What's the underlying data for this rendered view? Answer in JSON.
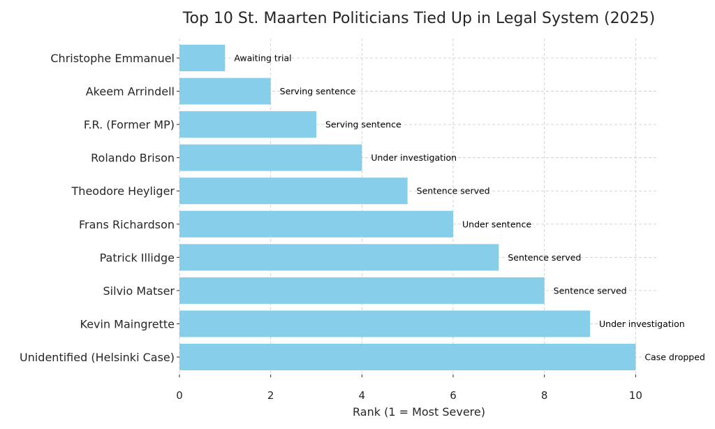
{
  "chart_data": {
    "type": "bar",
    "orientation": "horizontal",
    "title": "Top 10 St. Maarten Politicians Tied Up in Legal System (2025)",
    "xlabel": "Rank (1 = Most Severe)",
    "ylabel": "",
    "xlim": [
      0,
      10.5
    ],
    "xticks": [
      0,
      2,
      4,
      6,
      8,
      10
    ],
    "grid": true,
    "bar_color": "#87ceeb",
    "categories": [
      "Christophe Emmanuel",
      "Akeem Arrindell",
      "F.R. (Former MP)",
      "Rolando Brison",
      "Theodore Heyliger",
      "Frans Richardson",
      "Patrick Illidge",
      "Silvio Matser",
      "Kevin Maingrette",
      "Unidentified (Helsinki Case)"
    ],
    "values": [
      1,
      2,
      3,
      4,
      5,
      6,
      7,
      8,
      9,
      10
    ],
    "annotations": [
      "Awaiting trial",
      "Serving sentence",
      "Serving sentence",
      "Under investigation",
      "Sentence served",
      "Under sentence",
      "Sentence served",
      "Sentence served",
      "Under investigation",
      "Case dropped"
    ]
  }
}
